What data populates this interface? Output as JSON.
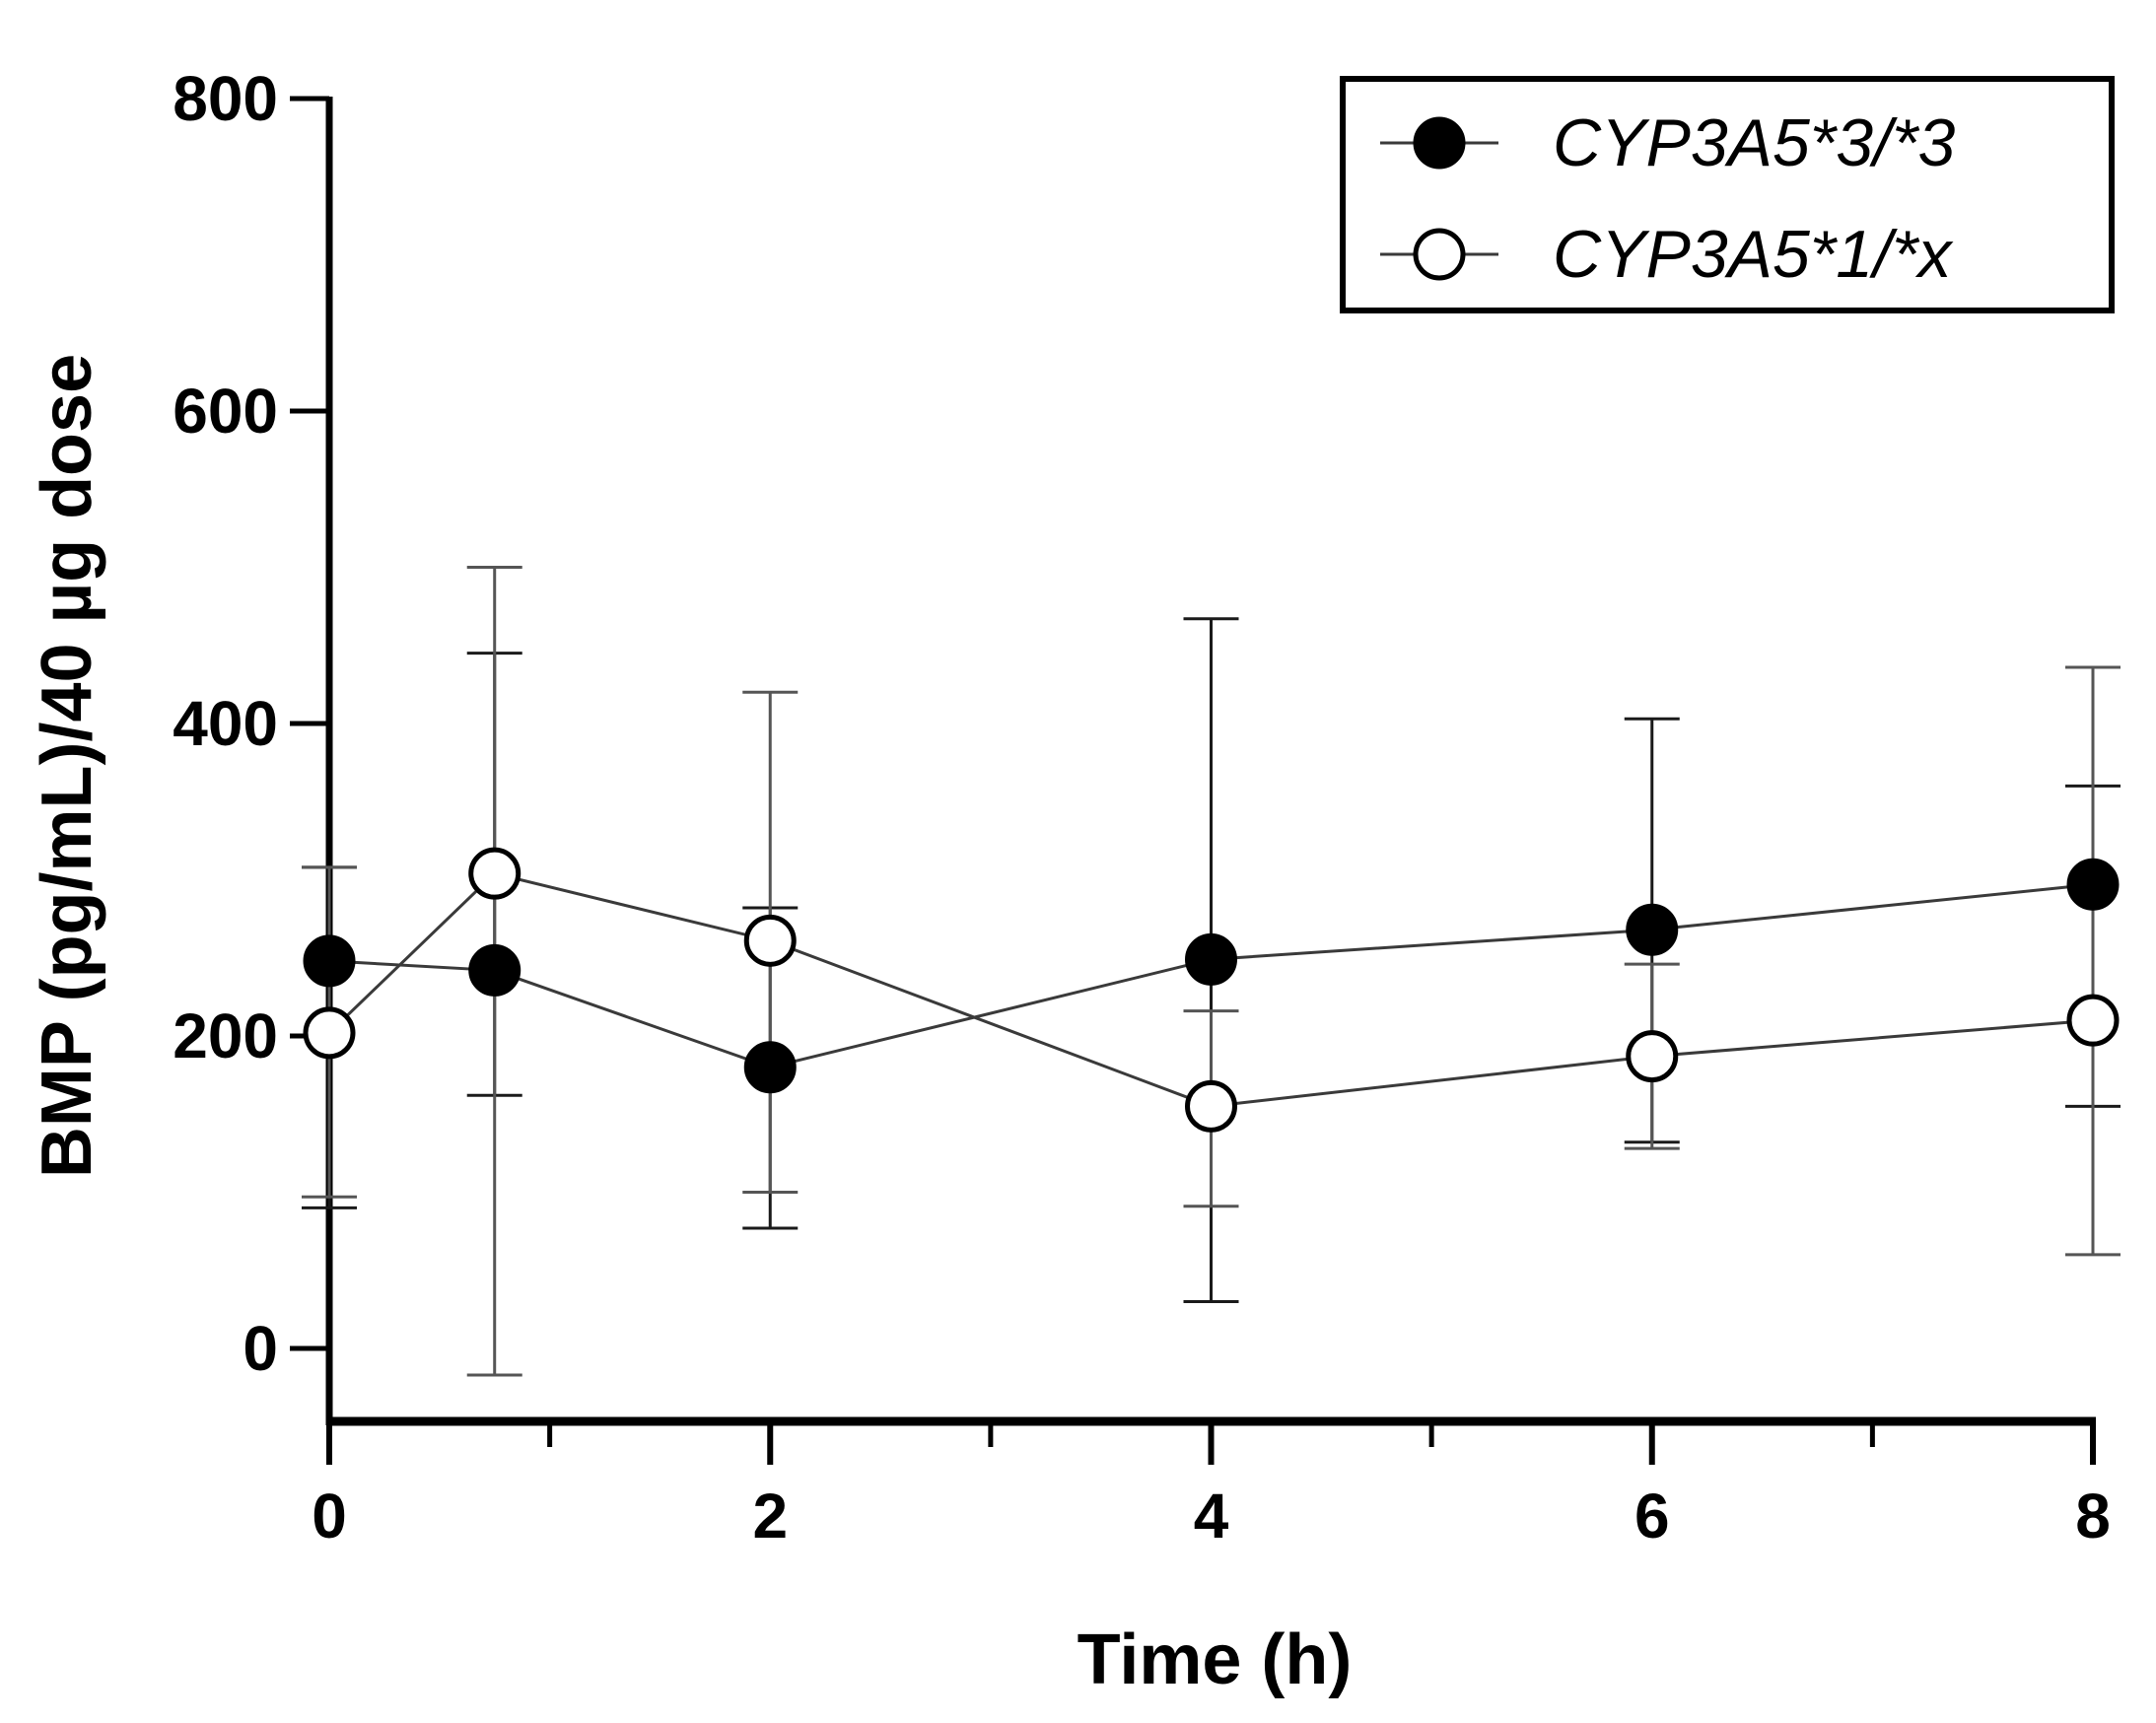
{
  "chart_data": {
    "type": "line",
    "title": "",
    "xlabel": "Time (h)",
    "ylabel": "BMP (pg/mL)/40 µg dose",
    "xlim": [
      0,
      8
    ],
    "ylim": [
      -50,
      800
    ],
    "xticks": [
      0,
      2,
      4,
      6,
      8
    ],
    "xticks_minor": [
      1,
      3,
      5,
      7
    ],
    "yticks": [
      0,
      200,
      400,
      600,
      800
    ],
    "grid": false,
    "legend_position": "top-right",
    "series": [
      {
        "name": "CYP3A5*3/*3",
        "marker": "filled-circle",
        "x": [
          0,
          0.75,
          2,
          4,
          6,
          8
        ],
        "y": [
          248,
          242,
          180,
          249,
          268,
          297
        ],
        "err_low": [
          90,
          162,
          77,
          30,
          132,
          155
        ],
        "err_high": [
          308,
          445,
          282,
          467,
          403,
          360
        ]
      },
      {
        "name": "CYP3A5*1/*x",
        "marker": "open-circle",
        "x": [
          0,
          0.75,
          2,
          4,
          6,
          8
        ],
        "y": [
          202,
          304,
          261,
          155,
          187,
          210
        ],
        "err_low": [
          97,
          -17,
          100,
          91,
          128,
          60
        ],
        "err_high": [
          308,
          500,
          420,
          216,
          246,
          436
        ]
      }
    ],
    "legend": [
      {
        "label": "CYP3A5*3/*3",
        "marker": "filled-circle"
      },
      {
        "label": "CYP3A5*1/*x",
        "marker": "open-circle"
      }
    ]
  },
  "colors": {
    "axis": "#000000",
    "line": "#3a3a3a",
    "errorbar_series1": "#1a1a1a",
    "errorbar_series2": "#555555",
    "marker": "#000000",
    "background": "#ffffff"
  }
}
